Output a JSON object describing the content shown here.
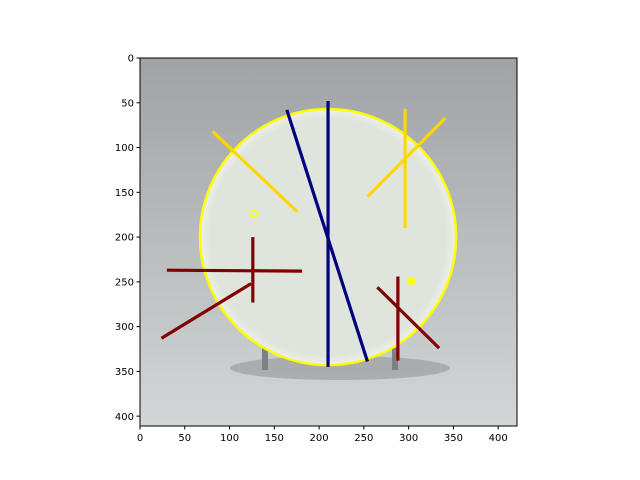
{
  "chart_data": {
    "type": "image-annotation",
    "xlim": [
      0,
      421
    ],
    "ylim": [
      411,
      0
    ],
    "x_ticks": [
      0,
      50,
      100,
      150,
      200,
      250,
      300,
      350,
      400
    ],
    "y_ticks": [
      0,
      50,
      100,
      150,
      200,
      250,
      300,
      350,
      400
    ],
    "background_colors": {
      "backdrop_top": "#9fa3a5",
      "backdrop_bottom": "#d3d6d7",
      "dish": "#dfe5dc",
      "dish_rim": "#ecf0e8"
    },
    "circles": [
      {
        "cx": 210,
        "cy": 200,
        "r": 143,
        "color": "#ffff00",
        "width": 2.5
      }
    ],
    "points": [
      {
        "x": 127,
        "y": 174,
        "color": "#ffff00",
        "hollow": true
      },
      {
        "x": 303,
        "y": 249,
        "color": "#ffff00",
        "hollow": false
      }
    ],
    "segments": [
      {
        "x1": 210,
        "y1": 48,
        "x2": 210,
        "y2": 345,
        "color": "#000080"
      },
      {
        "x1": 164,
        "y1": 58,
        "x2": 254,
        "y2": 339,
        "color": "#000080"
      },
      {
        "x1": 81,
        "y1": 82,
        "x2": 176,
        "y2": 172,
        "color": "#ffd700"
      },
      {
        "x1": 341,
        "y1": 67,
        "x2": 254,
        "y2": 155,
        "color": "#ffd700"
      },
      {
        "x1": 296,
        "y1": 57,
        "x2": 296,
        "y2": 190,
        "color": "#ffd700"
      },
      {
        "x1": 30,
        "y1": 237,
        "x2": 181,
        "y2": 238,
        "color": "#800000"
      },
      {
        "x1": 126,
        "y1": 200,
        "x2": 126,
        "y2": 273,
        "color": "#800000"
      },
      {
        "x1": 24,
        "y1": 313,
        "x2": 124,
        "y2": 252,
        "color": "#800000"
      },
      {
        "x1": 288,
        "y1": 244,
        "x2": 288,
        "y2": 338,
        "color": "#800000"
      },
      {
        "x1": 265,
        "y1": 256,
        "x2": 334,
        "y2": 324,
        "color": "#800000"
      }
    ]
  }
}
